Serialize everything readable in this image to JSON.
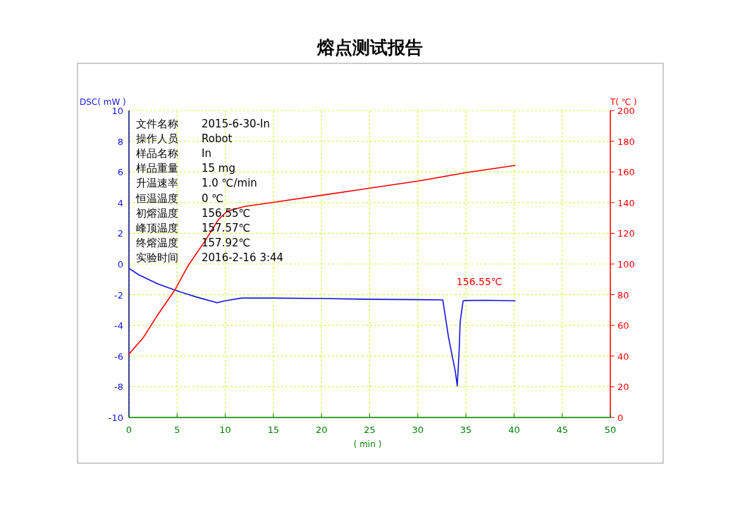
{
  "chart_data": {
    "type": "line",
    "title": "熔点测试报告",
    "xlabel": "( min )",
    "ylabel": "DSC( mW )",
    "y2label": "T( ℃ )",
    "xlim": [
      0,
      50
    ],
    "xticks": [
      0,
      5,
      10,
      15,
      20,
      25,
      30,
      35,
      40,
      45,
      50
    ],
    "ylim": [
      -10,
      10
    ],
    "yticks": [
      -10,
      -8,
      -6,
      -4,
      -2,
      0,
      2,
      4,
      6,
      8,
      10
    ],
    "y2lim": [
      0,
      200
    ],
    "y2ticks": [
      0,
      20,
      40,
      60,
      80,
      100,
      120,
      140,
      160,
      180,
      200
    ],
    "grid": true,
    "marker": "none",
    "line_style": "solid",
    "series": [
      {
        "color": "#1414e0",
        "axis": "y",
        "x": [
          0,
          1,
          2,
          3,
          4.76,
          7,
          9.15,
          10,
          11.7,
          15,
          20,
          25,
          30,
          32.6,
          33.2,
          33.9,
          34.1,
          34.3,
          34.4,
          34.7,
          34.8,
          37,
          40.1
        ],
        "values": [
          -0.28,
          -0.7,
          -1.0,
          -1.3,
          -1.7,
          -2.15,
          -2.52,
          -2.4,
          -2.22,
          -2.22,
          -2.25,
          -2.3,
          -2.32,
          -2.34,
          -4.8,
          -7.0,
          -7.94,
          -5.6,
          -3.8,
          -2.43,
          -2.38,
          -2.36,
          -2.4
        ]
      },
      {
        "color": "#ff0000",
        "axis": "y2",
        "x": [
          0,
          1.46,
          3,
          4.76,
          6.15,
          8,
          9.3,
          10.2,
          12,
          15.2,
          20,
          25,
          30,
          35.1,
          40.1
        ],
        "values": [
          41.3,
          51.8,
          67,
          83,
          99,
          116,
          129,
          134.4,
          137.5,
          140.4,
          144.8,
          149.4,
          154,
          159.6,
          164.2
        ]
      }
    ],
    "annotations": [
      "文件名称 2015-6-30-In",
      "操作人员 Robot",
      "样品名称 In",
      "样品重量 15 mg",
      "升温速率 1.0 ℃/min",
      "恒温温度 0 ℃",
      "初熔温度 156.55℃",
      "峰顶温度 157.57℃",
      "终熔温度 157.92℃",
      "实验时间 2016-2-16 3:44",
      "156.55℃"
    ]
  }
}
